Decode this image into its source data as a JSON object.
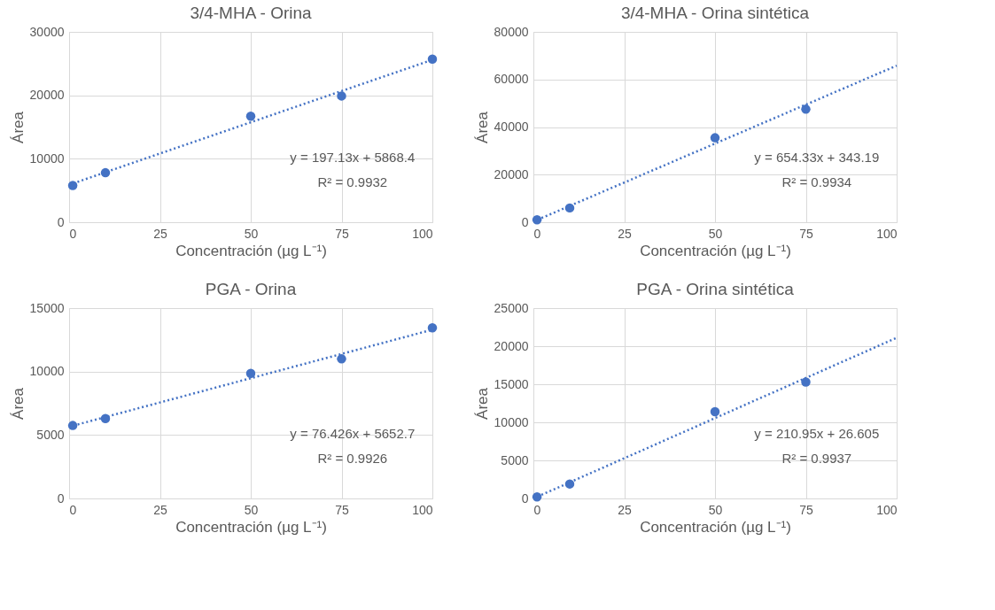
{
  "chart_data": [
    {
      "type": "scatter",
      "title": "3/4-MHA - Orina",
      "xlabel": "Concentración (µg L⁻¹)",
      "ylabel": "Área",
      "xlim": [
        0,
        100
      ],
      "xticks": [
        0,
        25,
        50,
        75,
        100
      ],
      "ylim": [
        0,
        30000
      ],
      "yticks": [
        0,
        10000,
        20000,
        30000
      ],
      "grid": true,
      "series": [
        {
          "marker": "circle",
          "color": "#4472c4",
          "x": [
            1,
            10,
            50,
            75,
            100
          ],
          "values": [
            5800,
            7800,
            16700,
            19900,
            25700
          ]
        },
        {
          "type": "line",
          "marker": "none",
          "line_style": "dotted",
          "color": "#4472c4",
          "x": [
            0,
            100
          ],
          "values": [
            5900,
            25600
          ]
        }
      ],
      "annotations": [
        "y = 197.13x + 5868.4",
        "R² = 0.9932"
      ]
    },
    {
      "type": "scatter",
      "title": "3/4-MHA - Orina sintética",
      "xlabel": "Concentración (µg L⁻¹)",
      "ylabel": "Área",
      "xlim": [
        0,
        100
      ],
      "xticks": [
        0,
        25,
        50,
        75,
        100
      ],
      "ylim": [
        0,
        80000
      ],
      "yticks": [
        0,
        20000,
        40000,
        60000,
        80000
      ],
      "grid": true,
      "series": [
        {
          "marker": "circle",
          "color": "#4472c4",
          "x": [
            1,
            10,
            50,
            75
          ],
          "values": [
            1000,
            6000,
            35500,
            47500
          ]
        },
        {
          "type": "line",
          "marker": "none",
          "line_style": "dotted",
          "color": "#4472c4",
          "x": [
            0,
            100
          ],
          "values": [
            300,
            65800
          ]
        }
      ],
      "annotations": [
        "y = 654.33x + 343.19",
        "R² = 0.9934"
      ]
    },
    {
      "type": "scatter",
      "title": "PGA - Orina",
      "xlabel": "Concentración (µg L⁻¹)",
      "ylabel": "Área",
      "xlim": [
        0,
        100
      ],
      "xticks": [
        0,
        25,
        50,
        75,
        100
      ],
      "ylim": [
        0,
        15000
      ],
      "yticks": [
        0,
        5000,
        10000,
        15000
      ],
      "grid": true,
      "series": [
        {
          "marker": "circle",
          "color": "#4472c4",
          "x": [
            1,
            10,
            50,
            75,
            100
          ],
          "values": [
            5750,
            6300,
            9850,
            11000,
            13450
          ]
        },
        {
          "type": "line",
          "marker": "none",
          "line_style": "dotted",
          "color": "#4472c4",
          "x": [
            0,
            100
          ],
          "values": [
            5650,
            13300
          ]
        }
      ],
      "annotations": [
        "y = 76.426x + 5652.7",
        "R² = 0.9926"
      ]
    },
    {
      "type": "scatter",
      "title": "PGA - Orina sintética",
      "xlabel": "Concentración (µg L⁻¹)",
      "ylabel": "Área",
      "xlim": [
        0,
        100
      ],
      "xticks": [
        0,
        25,
        50,
        75,
        100
      ],
      "ylim": [
        0,
        25000
      ],
      "yticks": [
        0,
        5000,
        10000,
        15000,
        20000,
        25000
      ],
      "grid": true,
      "series": [
        {
          "marker": "circle",
          "color": "#4472c4",
          "x": [
            1,
            10,
            50,
            75
          ],
          "values": [
            200,
            1900,
            11400,
            15300
          ]
        },
        {
          "type": "line",
          "marker": "none",
          "line_style": "dotted",
          "color": "#4472c4",
          "x": [
            0,
            100
          ],
          "values": [
            0,
            21100
          ]
        }
      ],
      "annotations": [
        "y = 210.95x + 26.605",
        "R² = 0.9937"
      ]
    }
  ]
}
